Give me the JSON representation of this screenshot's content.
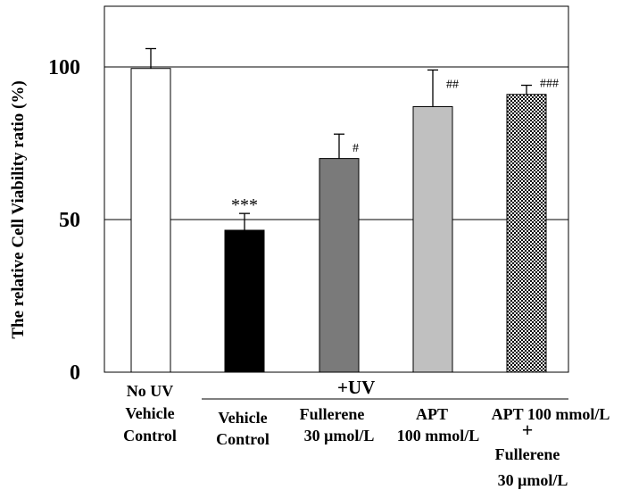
{
  "chart_data": {
    "type": "bar",
    "ylabel": "The relative Cell Viability ratio (%)",
    "ylim": [
      0,
      120
    ],
    "yticks": [
      0,
      50,
      100
    ],
    "gridlines": [
      50,
      100
    ],
    "group_label": "+UV",
    "bars": [
      {
        "label_lines": [
          "No UV",
          "Vehicle",
          "Control"
        ],
        "value": 99.5,
        "error": 6.5,
        "fill": "#ffffff",
        "pattern": "none",
        "sig": ""
      },
      {
        "label_lines": [
          "Vehicle",
          "Control"
        ],
        "value": 46.5,
        "error": 5.5,
        "fill": "#000000",
        "pattern": "none",
        "sig": "***"
      },
      {
        "label_lines": [
          "Fullerene",
          "30 μmol/L"
        ],
        "value": 70,
        "error": 8,
        "fill": "#7a7a7a",
        "pattern": "none",
        "sig": "#"
      },
      {
        "label_lines": [
          "APT",
          "100 mmol/L"
        ],
        "value": 87,
        "error": 12,
        "fill": "#c0c0c0",
        "pattern": "none",
        "sig": "##"
      },
      {
        "label_lines": [
          "APT 100 mmol/L",
          "+",
          "Fullerene",
          "30 μmol/L"
        ],
        "value": 91,
        "error": 3,
        "fill": "#ffffff",
        "pattern": "checker",
        "sig": "###"
      }
    ]
  }
}
